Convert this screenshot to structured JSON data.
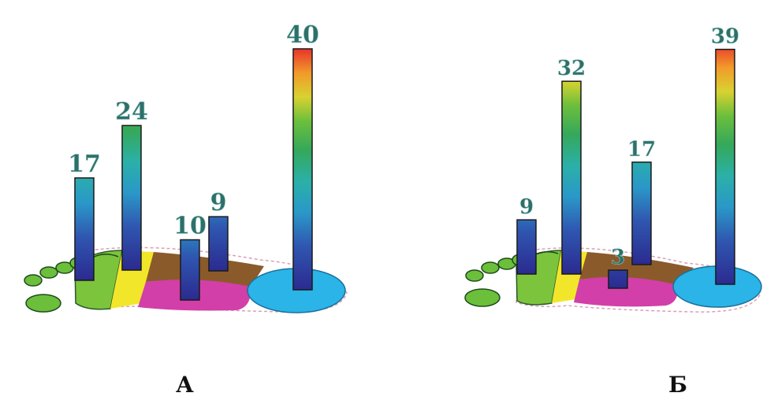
{
  "chart_data": [
    {
      "type": "bar",
      "panel_label": "А",
      "categories": [
        "",
        "",
        "",
        "",
        ""
      ],
      "values": [
        17,
        24,
        10,
        9,
        40
      ],
      "value_labels": [
        "17",
        "24",
        "10",
        "9",
        "40"
      ]
    },
    {
      "type": "bar",
      "panel_label": "Б",
      "categories": [
        "",
        "",
        "",
        "",
        ""
      ],
      "values": [
        9,
        32,
        3,
        17,
        39
      ],
      "value_labels": [
        "9",
        "32",
        "3",
        "17",
        "39"
      ]
    }
  ],
  "colors": {
    "toes": "#6bbf3a",
    "forefoot_green": "#7cc43c",
    "forefoot_yellow": "#f2e62a",
    "midfoot_brown": "#8b5a2b",
    "medial_magenta": "#d23fa8",
    "heel_cyan": "#2ab4e8",
    "scale_low": "#2b2a8f",
    "scale_high": "#e8332a",
    "label_teal": "#2f6f6a"
  }
}
